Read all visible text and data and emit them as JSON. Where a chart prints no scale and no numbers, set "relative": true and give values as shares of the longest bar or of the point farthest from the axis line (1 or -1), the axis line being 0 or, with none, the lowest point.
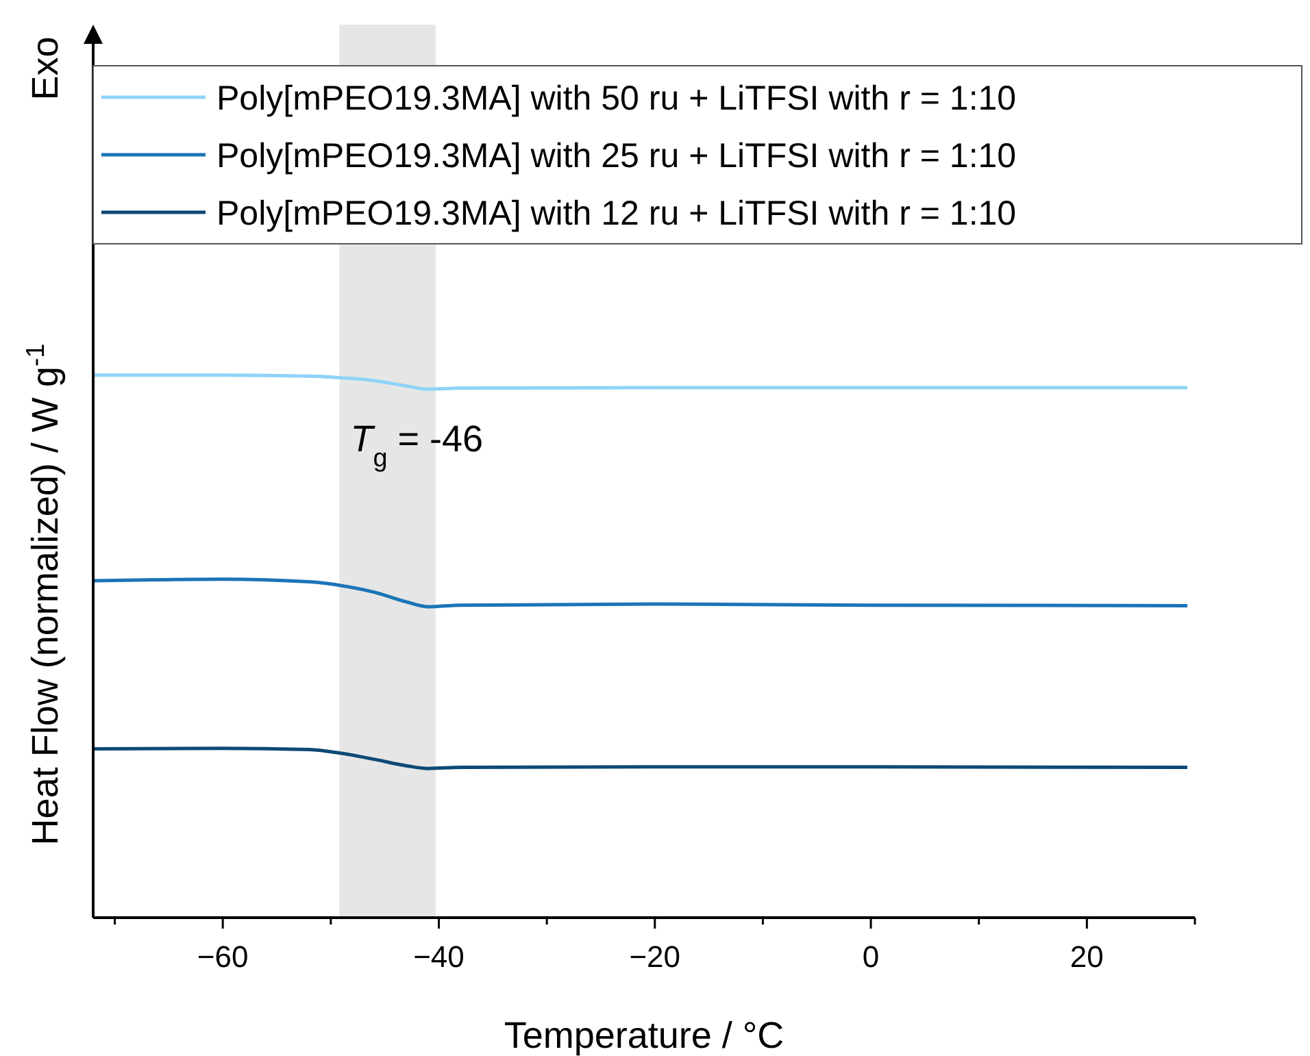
{
  "chart_data": {
    "type": "line",
    "relative": true,
    "xlabel": "Temperature / °C",
    "ylabel": "Heat Flow (normalized) / W g$^{-1}$",
    "xlim": [
      -72,
      30
    ],
    "xticks": [
      {
        "value": -70,
        "label": null
      },
      {
        "value": -60,
        "label": "−60"
      },
      {
        "value": -50,
        "label": null
      },
      {
        "value": -40,
        "label": "−40"
      },
      {
        "value": -30,
        "label": null
      },
      {
        "value": -20,
        "label": "−20"
      },
      {
        "value": -10,
        "label": null
      },
      {
        "value": 0,
        "label": "0"
      },
      {
        "value": 10,
        "label": null
      },
      {
        "value": 20,
        "label": "20"
      },
      {
        "value": 30,
        "label": null
      }
    ],
    "x": [
      -72,
      -60,
      -52,
      -49,
      -46,
      -43,
      -41,
      -38,
      -20,
      0,
      29.3
    ],
    "series": [
      {
        "name": "Poly[mPEO19.3MA] with 50 ru + LiTFSI with r = 1:10",
        "color": "#8fd3f7",
        "values": [
          1.0,
          1.0,
          0.998,
          0.995,
          0.99,
          0.98,
          0.974,
          0.976,
          0.977,
          0.977,
          0.977
        ]
      },
      {
        "name": "Poly[mPEO19.3MA] with 25 ru + LiTFSI with r = 1:10",
        "color": "#1a75b8",
        "values": [
          0.621,
          0.624,
          0.619,
          0.612,
          0.6,
          0.582,
          0.573,
          0.576,
          0.578,
          0.576,
          0.575
        ]
      },
      {
        "name": "Poly[mPEO19.3MA] with 12 ru + LiTFSI with r = 1:10",
        "color": "#0d4a75",
        "values": [
          0.311,
          0.312,
          0.31,
          0.303,
          0.292,
          0.28,
          0.275,
          0.277,
          0.278,
          0.278,
          0.277
        ]
      }
    ],
    "bands": [
      {
        "axis": "x",
        "from": -49.2,
        "to": -40.3,
        "label": "T$_{g}$ = -46",
        "color": "#e6e6e6"
      }
    ],
    "annotations": [
      "Exo"
    ],
    "legend": "top",
    "grid": false,
    "marker": "none",
    "line_style": "solid"
  }
}
